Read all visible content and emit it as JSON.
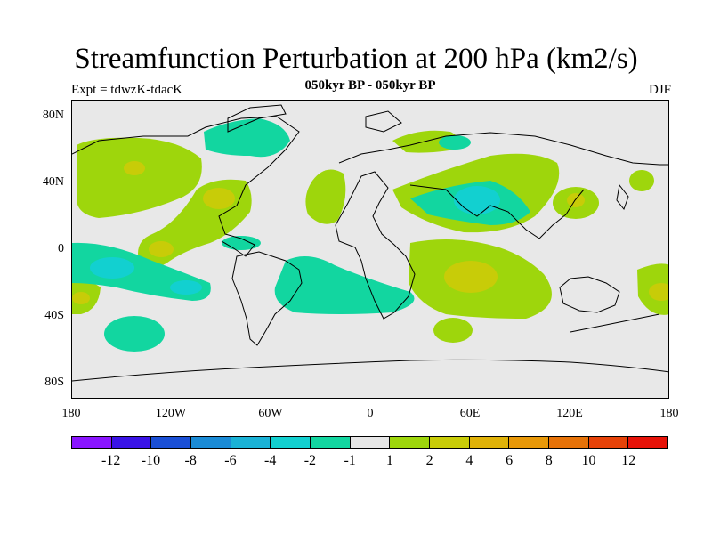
{
  "title": "Streamfunction Perturbation at 200 hPa (km2/s)",
  "subtitle": "050kyr BP - 050kyr BP",
  "left_label": "Expt = tdwzK-tdacK",
  "right_label": "DJF",
  "y_ticks": [
    "80N",
    "40N",
    "0",
    "40S",
    "80S"
  ],
  "x_ticks": [
    "180",
    "120W",
    "60W",
    "0",
    "60E",
    "120E",
    "180"
  ],
  "colorbar": {
    "colors": [
      "#8a15ff",
      "#3a13e6",
      "#1a4fd6",
      "#1a8bd6",
      "#1ab2d6",
      "#12d0d0",
      "#12d6a0",
      "#e6e6e6",
      "#9ed60c",
      "#c8cc08",
      "#e0b208",
      "#e89808",
      "#e67208",
      "#e64208",
      "#e61208"
    ],
    "labels": [
      "-12",
      "-10",
      "-8",
      "-6",
      "-4",
      "-2",
      "-1",
      "1",
      "2",
      "4",
      "6",
      "8",
      "10",
      "12"
    ]
  }
}
